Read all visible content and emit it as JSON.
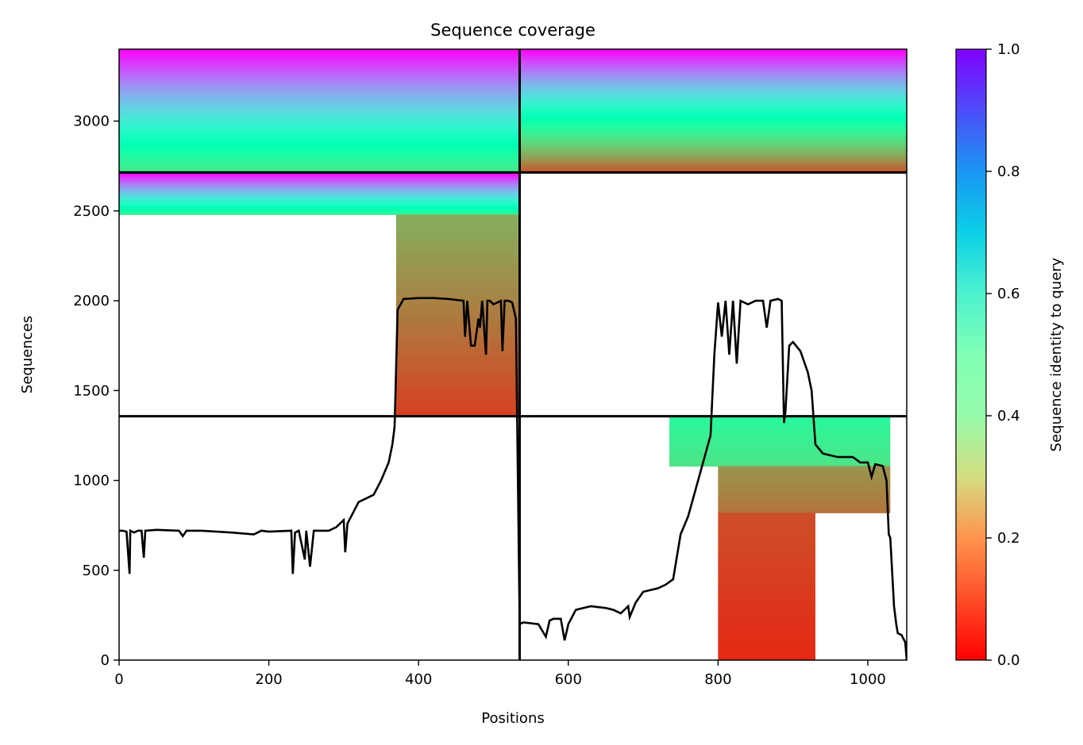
{
  "chart_data": {
    "type": "heatmap",
    "title": "Sequence coverage",
    "xlabel": "Positions",
    "ylabel": "Sequences",
    "xlim": [
      0,
      1052
    ],
    "ylim": [
      0,
      3400
    ],
    "x_ticks": [
      0,
      200,
      400,
      600,
      800,
      1000
    ],
    "y_ticks": [
      0,
      500,
      1000,
      1500,
      2000,
      2500,
      3000
    ],
    "block_dividers": {
      "x": [
        535
      ],
      "y": [
        1357,
        2714
      ]
    },
    "colorbar": {
      "label": "Sequence identity to query",
      "colormap": "rainbow_r",
      "range": [
        0,
        1
      ],
      "ticks": [
        0.0,
        0.2,
        0.4,
        0.6,
        0.8,
        1.0
      ],
      "tick_labels": [
        "0.0",
        "0.2",
        "0.4",
        "0.6",
        "0.8",
        "1.0"
      ]
    },
    "coverage_regions": [
      {
        "x": [
          0,
          535
        ],
        "y": [
          2714,
          3400
        ],
        "identity_top": 1.0,
        "identity_bottom": 0.35,
        "note_start_shift": [
          [
            2714,
            2790,
            370
          ],
          [
            2790,
            2880,
            0
          ]
        ]
      },
      {
        "x": [
          535,
          1052
        ],
        "y": [
          2714,
          3400
        ],
        "identity_top": 1.0,
        "identity_bottom": 0.1
      },
      {
        "x": [
          0,
          535
        ],
        "y": [
          2480,
          2714
        ],
        "identity_top": 1.0,
        "identity_bottom": 0.4
      },
      {
        "x": [
          370,
          535
        ],
        "y": [
          1357,
          2480
        ],
        "identity_top": 0.24,
        "identity_bottom": 0.08
      },
      {
        "x": [
          735,
          1030
        ],
        "y": [
          1080,
          1357
        ],
        "identity_top": 0.42,
        "identity_bottom": 0.35
      },
      {
        "x": [
          800,
          1030
        ],
        "y": [
          820,
          1080
        ],
        "identity_top": 0.2,
        "identity_bottom": 0.15
      },
      {
        "x": [
          800,
          930
        ],
        "y": [
          0,
          820
        ],
        "identity_top": 0.1,
        "identity_bottom": 0.05
      }
    ],
    "coverage_line": {
      "x": [
        0,
        5,
        10,
        14,
        15,
        20,
        25,
        30,
        33,
        35,
        50,
        80,
        85,
        90,
        110,
        150,
        180,
        190,
        200,
        230,
        232,
        235,
        240,
        248,
        250,
        255,
        260,
        280,
        290,
        300,
        302,
        305,
        310,
        320,
        330,
        340,
        350,
        360,
        365,
        368,
        372,
        380,
        400,
        420,
        440,
        460,
        462,
        465,
        470,
        475,
        480,
        482,
        485,
        490,
        492,
        495,
        500,
        510,
        512,
        515,
        520,
        525,
        530,
        535,
        540,
        560,
        570,
        575,
        580,
        590,
        595,
        600,
        610,
        630,
        650,
        660,
        670,
        680,
        682,
        690,
        700,
        720,
        730,
        740,
        750,
        760,
        770,
        780,
        790,
        795,
        800,
        805,
        810,
        815,
        820,
        825,
        830,
        840,
        850,
        860,
        865,
        870,
        880,
        885,
        888,
        890,
        895,
        900,
        910,
        920,
        925,
        930,
        940,
        960,
        980,
        990,
        1000,
        1005,
        1010,
        1020,
        1025,
        1028,
        1030,
        1035,
        1038,
        1040,
        1045,
        1050,
        1052
      ],
      "y": [
        720,
        720,
        715,
        480,
        720,
        710,
        720,
        720,
        570,
        720,
        725,
        720,
        690,
        720,
        720,
        710,
        700,
        720,
        715,
        720,
        480,
        710,
        720,
        560,
        720,
        520,
        720,
        720,
        740,
        780,
        600,
        760,
        800,
        880,
        900,
        920,
        1000,
        1100,
        1200,
        1300,
        1950,
        2010,
        2015,
        2015,
        2010,
        2000,
        1800,
        2000,
        1750,
        1750,
        1900,
        1850,
        2000,
        1700,
        2000,
        2000,
        1980,
        2000,
        1720,
        2000,
        2000,
        1990,
        1900,
        200,
        210,
        200,
        130,
        220,
        230,
        230,
        110,
        200,
        280,
        300,
        290,
        280,
        260,
        300,
        240,
        320,
        380,
        400,
        420,
        450,
        700,
        800,
        950,
        1100,
        1250,
        1700,
        1990,
        1800,
        2000,
        1700,
        2000,
        1650,
        2000,
        1980,
        2000,
        2000,
        1850,
        2000,
        2010,
        2000,
        1320,
        1380,
        1750,
        1770,
        1720,
        1600,
        1500,
        1200,
        1150,
        1130,
        1130,
        1100,
        1100,
        1020,
        1090,
        1080,
        1000,
        700,
        680,
        300,
        200,
        150,
        140,
        100,
        0
      ]
    }
  }
}
